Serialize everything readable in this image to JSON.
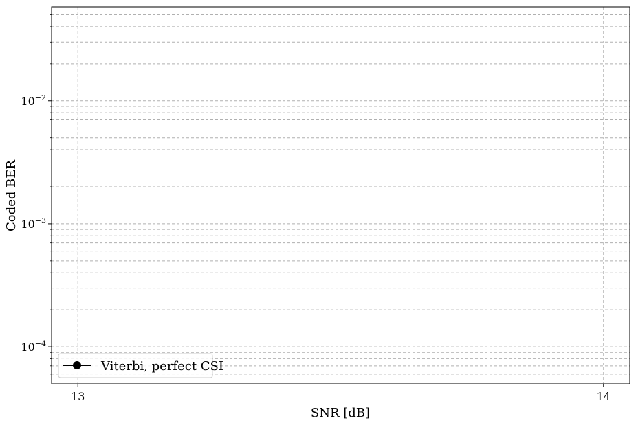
{
  "chart_data": {
    "type": "line",
    "xlabel": "SNR [dB]",
    "ylabel": "Coded BER",
    "xlim": [
      12.95,
      14.05
    ],
    "ylim": [
      5e-05,
      0.058
    ],
    "yscale": "log",
    "grid": true,
    "x_ticks": [
      {
        "value": 13,
        "label": "13"
      },
      {
        "value": 14,
        "label": "14"
      }
    ],
    "y_major_ticks": [
      {
        "value": 0.0001,
        "base": "10",
        "exp": "−4"
      },
      {
        "value": 0.001,
        "base": "10",
        "exp": "−3"
      },
      {
        "value": 0.01,
        "base": "10",
        "exp": "−2"
      }
    ],
    "y_minor_ticks": [
      6e-05,
      7e-05,
      8e-05,
      9e-05,
      0.0002,
      0.0003,
      0.0004,
      0.0005,
      0.0006,
      0.0007,
      0.0008,
      0.0009,
      0.002,
      0.003,
      0.004,
      0.005,
      0.006,
      0.007,
      0.008,
      0.009,
      0.02,
      0.03,
      0.04,
      0.05
    ],
    "legend_position": "lower-left",
    "series": [
      {
        "name": "Viterbi, perfect CSI",
        "color": "#000000",
        "marker": "circle",
        "x": [],
        "y": []
      }
    ]
  }
}
